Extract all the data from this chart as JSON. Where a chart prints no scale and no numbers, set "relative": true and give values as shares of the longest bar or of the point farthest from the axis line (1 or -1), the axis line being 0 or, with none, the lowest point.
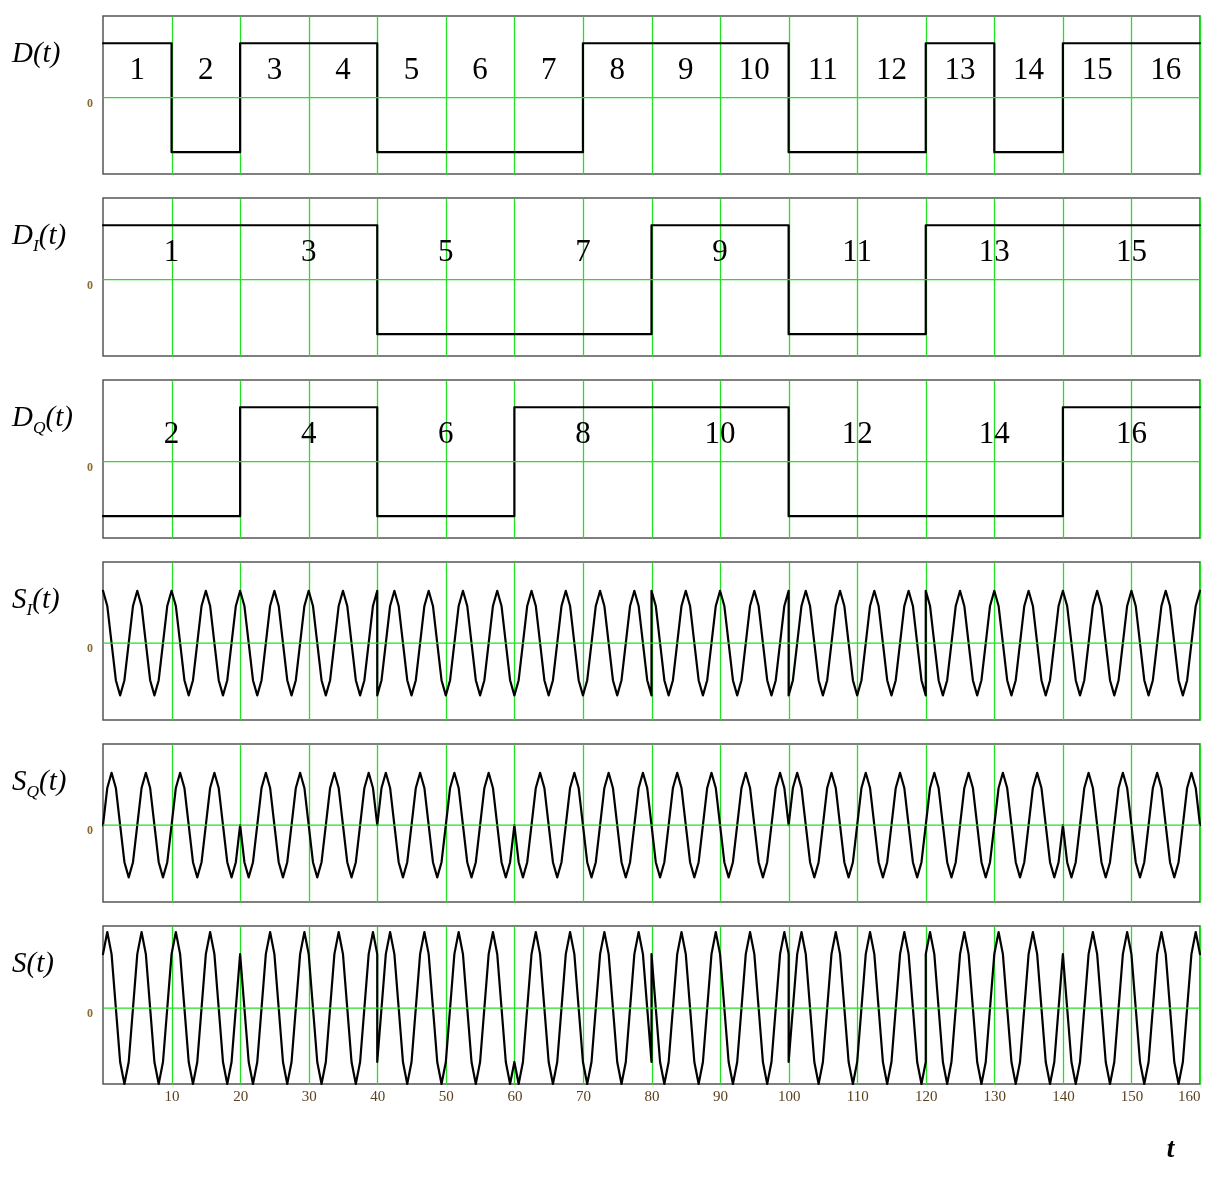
{
  "chart_data": [
    {
      "type": "step",
      "ylabel": "D(t)",
      "relative": true,
      "xlim": [
        0,
        160
      ],
      "xticks": [
        10,
        20,
        30,
        40,
        50,
        60,
        70,
        80,
        90,
        100,
        110,
        120,
        130,
        140,
        150,
        160
      ],
      "grid": "x",
      "tick_labels": "y",
      "x": [
        0,
        10,
        20,
        30,
        40,
        50,
        60,
        70,
        80,
        90,
        100,
        110,
        120,
        130,
        140,
        150,
        160
      ],
      "series": [
        {
          "color": "#000000",
          "values": [
            1,
            -1,
            1,
            1,
            -1,
            -1,
            -1,
            1,
            1,
            1,
            -1,
            -1,
            1,
            -1,
            1,
            1,
            1
          ]
        }
      ],
      "ref_lines": [
        {
          "axis": "y",
          "value": 0,
          "label": "0",
          "color": "#22e022"
        }
      ],
      "annotations": [
        "1",
        "2",
        "3",
        "4",
        "5",
        "6",
        "7",
        "8",
        "9",
        "10",
        "11",
        "12",
        "13",
        "14",
        "15",
        "16"
      ]
    },
    {
      "type": "step",
      "ylabel": "D$_{I}$(t)",
      "relative": true,
      "xlim": [
        0,
        160
      ],
      "xticks": [
        10,
        20,
        30,
        40,
        50,
        60,
        70,
        80,
        90,
        100,
        110,
        120,
        130,
        140,
        150,
        160
      ],
      "grid": "x",
      "tick_labels": "y",
      "x": [
        0,
        20,
        40,
        60,
        80,
        100,
        120,
        140,
        160
      ],
      "series": [
        {
          "color": "#000000",
          "values": [
            1,
            1,
            -1,
            -1,
            1,
            -1,
            1,
            1,
            1
          ]
        }
      ],
      "ref_lines": [
        {
          "axis": "y",
          "value": 0,
          "label": "0",
          "color": "#22e022"
        }
      ],
      "annotations": [
        "1",
        "3",
        "5",
        "7",
        "9",
        "11",
        "13",
        "15"
      ]
    },
    {
      "type": "step",
      "ylabel": "D$_{Q}$(t)",
      "relative": true,
      "xlim": [
        0,
        160
      ],
      "xticks": [
        10,
        20,
        30,
        40,
        50,
        60,
        70,
        80,
        90,
        100,
        110,
        120,
        130,
        140,
        150,
        160
      ],
      "grid": "x",
      "tick_labels": "y",
      "x": [
        0,
        20,
        40,
        60,
        80,
        100,
        120,
        140,
        160
      ],
      "series": [
        {
          "color": "#000000",
          "values": [
            -1,
            1,
            -1,
            1,
            1,
            -1,
            -1,
            1,
            1
          ]
        }
      ],
      "ref_lines": [
        {
          "axis": "y",
          "value": 0,
          "label": "0",
          "color": "#22e022"
        }
      ],
      "annotations": [
        "2",
        "4",
        "6",
        "8",
        "10",
        "12",
        "14",
        "16"
      ]
    },
    {
      "type": "line",
      "ylabel": "S$_{I}$(t)",
      "relative": true,
      "xlim": [
        0,
        160
      ],
      "xticks": [
        10,
        20,
        30,
        40,
        50,
        60,
        70,
        80,
        90,
        100,
        110,
        120,
        130,
        140,
        150,
        160
      ],
      "grid": "x",
      "tick_labels": "y",
      "x": [
        0,
        0.625,
        1.25,
        1.875,
        2.5,
        3.125,
        3.75,
        4.375,
        5,
        5.625,
        6.25,
        6.875,
        7.5,
        8.125,
        8.75,
        9.375,
        10,
        10.625,
        11.25,
        11.875,
        12.5,
        13.125,
        13.75,
        14.375,
        15,
        15.625,
        16.25,
        16.875,
        17.5,
        18.125,
        18.75,
        19.375,
        20,
        20.625,
        21.25,
        21.875,
        22.5,
        23.125,
        23.75,
        24.375,
        25,
        25.625,
        26.25,
        26.875,
        27.5,
        28.125,
        28.75,
        29.375,
        30,
        30.625,
        31.25,
        31.875,
        32.5,
        33.125,
        33.75,
        34.375,
        35,
        35.625,
        36.25,
        36.875,
        37.5,
        38.125,
        38.75,
        39.375,
        40,
        40,
        40.625,
        41.25,
        41.875,
        42.5,
        43.125,
        43.75,
        44.375,
        45,
        45.625,
        46.25,
        46.875,
        47.5,
        48.125,
        48.75,
        49.375,
        50,
        50.625,
        51.25,
        51.875,
        52.5,
        53.125,
        53.75,
        54.375,
        55,
        55.625,
        56.25,
        56.875,
        57.5,
        58.125,
        58.75,
        59.375,
        60,
        60.625,
        61.25,
        61.875,
        62.5,
        63.125,
        63.75,
        64.375,
        65,
        65.625,
        66.25,
        66.875,
        67.5,
        68.125,
        68.75,
        69.375,
        70,
        70.625,
        71.25,
        71.875,
        72.5,
        73.125,
        73.75,
        74.375,
        75,
        75.625,
        76.25,
        76.875,
        77.5,
        78.125,
        78.75,
        79.375,
        80,
        80,
        80.625,
        81.25,
        81.875,
        82.5,
        83.125,
        83.75,
        84.375,
        85,
        85.625,
        86.25,
        86.875,
        87.5,
        88.125,
        88.75,
        89.375,
        90,
        90.625,
        91.25,
        91.875,
        92.5,
        93.125,
        93.75,
        94.375,
        95,
        95.625,
        96.25,
        96.875,
        97.5,
        98.125,
        98.75,
        99.375,
        100,
        100,
        100.625,
        101.25,
        101.875,
        102.5,
        103.125,
        103.75,
        104.375,
        105,
        105.625,
        106.25,
        106.875,
        107.5,
        108.125,
        108.75,
        109.375,
        110,
        110.625,
        111.25,
        111.875,
        112.5,
        113.125,
        113.75,
        114.375,
        115,
        115.625,
        116.25,
        116.875,
        117.5,
        118.125,
        118.75,
        119.375,
        120,
        120,
        120.625,
        121.25,
        121.875,
        122.5,
        123.125,
        123.75,
        124.375,
        125,
        125.625,
        126.25,
        126.875,
        127.5,
        128.125,
        128.75,
        129.375,
        130,
        130.625,
        131.25,
        131.875,
        132.5,
        133.125,
        133.75,
        134.375,
        135,
        135.625,
        136.25,
        136.875,
        137.5,
        138.125,
        138.75,
        139.375,
        140,
        140.625,
        141.25,
        141.875,
        142.5,
        143.125,
        143.75,
        144.375,
        145,
        145.625,
        146.25,
        146.875,
        147.5,
        148.125,
        148.75,
        149.375,
        150,
        150.625,
        151.25,
        151.875,
        152.5,
        153.125,
        153.75,
        154.375,
        155,
        155.625,
        156.25,
        156.875,
        157.5,
        158.125,
        158.75,
        159.375,
        160
      ],
      "series": [
        {
          "color": "#000000",
          "values": [
            1,
            0.71,
            0,
            -0.71,
            -1,
            -0.71,
            0,
            0.71,
            1,
            0.71,
            0,
            -0.71,
            -1,
            -0.71,
            0,
            0.71,
            1,
            0.71,
            0,
            -0.71,
            -1,
            -0.71,
            0,
            0.71,
            1,
            0.71,
            0,
            -0.71,
            -1,
            -0.71,
            0,
            0.71,
            1,
            0.71,
            0,
            -0.71,
            -1,
            -0.71,
            0,
            0.71,
            1,
            0.71,
            0,
            -0.71,
            -1,
            -0.71,
            0,
            0.71,
            1,
            0.71,
            0,
            -0.71,
            -1,
            -0.71,
            0,
            0.71,
            1,
            0.71,
            0,
            -0.71,
            -1,
            -0.71,
            0,
            0.71,
            1,
            -1,
            -0.71,
            0,
            0.71,
            1,
            0.71,
            0,
            -0.71,
            -1,
            -0.71,
            0,
            0.71,
            1,
            0.71,
            0,
            -0.71,
            -1,
            -0.71,
            0,
            0.71,
            1,
            0.71,
            0,
            -0.71,
            -1,
            -0.71,
            0,
            0.71,
            1,
            0.71,
            0,
            -0.71,
            -1,
            -0.71,
            0,
            0.71,
            1,
            0.71,
            0,
            -0.71,
            -1,
            -0.71,
            0,
            0.71,
            1,
            0.71,
            0,
            -0.71,
            -1,
            -0.71,
            0,
            0.71,
            1,
            0.71,
            0,
            -0.71,
            -1,
            -0.71,
            0,
            0.71,
            1,
            0.71,
            0,
            -0.71,
            -1,
            1,
            0.71,
            0,
            -0.71,
            -1,
            -0.71,
            0,
            0.71,
            1,
            0.71,
            0,
            -0.71,
            -1,
            -0.71,
            0,
            0.71,
            1,
            0.71,
            0,
            -0.71,
            -1,
            -0.71,
            0,
            0.71,
            1,
            0.71,
            0,
            -0.71,
            -1,
            -0.71,
            0,
            0.71,
            1,
            -1,
            -0.71,
            0,
            0.71,
            1,
            0.71,
            0,
            -0.71,
            -1,
            -0.71,
            0,
            0.71,
            1,
            0.71,
            0,
            -0.71,
            -1,
            -0.71,
            0,
            0.71,
            1,
            0.71,
            0,
            -0.71,
            -1,
            -0.71,
            0,
            0.71,
            1,
            0.71,
            0,
            -0.71,
            -1,
            1,
            0.71,
            0,
            -0.71,
            -1,
            -0.71,
            0,
            0.71,
            1,
            0.71,
            0,
            -0.71,
            -1,
            -0.71,
            0,
            0.71,
            1,
            0.71,
            0,
            -0.71,
            -1,
            -0.71,
            0,
            0.71,
            1,
            0.71,
            0,
            -0.71,
            -1,
            -0.71,
            0,
            0.71,
            1,
            0.71,
            0,
            -0.71,
            -1,
            -0.71,
            0,
            0.71,
            1,
            0.71,
            0,
            -0.71,
            -1,
            -0.71,
            0,
            0.71,
            1,
            0.71,
            0,
            -0.71,
            -1,
            -0.71,
            0,
            0.71,
            1,
            0.71,
            0,
            -0.71,
            -1,
            -0.71,
            0,
            0.71,
            1
          ]
        }
      ],
      "ref_lines": [
        {
          "axis": "y",
          "value": 0,
          "label": "0",
          "color": "#22e022"
        }
      ]
    },
    {
      "type": "line",
      "ylabel": "S$_{Q}$(t)",
      "relative": true,
      "xlim": [
        0,
        160
      ],
      "xticks": [
        10,
        20,
        30,
        40,
        50,
        60,
        70,
        80,
        90,
        100,
        110,
        120,
        130,
        140,
        150,
        160
      ],
      "grid": "x",
      "tick_labels": "y",
      "x": [
        0,
        0.625,
        1.25,
        1.875,
        2.5,
        3.125,
        3.75,
        4.375,
        5,
        5.625,
        6.25,
        6.875,
        7.5,
        8.125,
        8.75,
        9.375,
        10,
        10.625,
        11.25,
        11.875,
        12.5,
        13.125,
        13.75,
        14.375,
        15,
        15.625,
        16.25,
        16.875,
        17.5,
        18.125,
        18.75,
        19.375,
        20,
        20.625,
        21.25,
        21.875,
        22.5,
        23.125,
        23.75,
        24.375,
        25,
        25.625,
        26.25,
        26.875,
        27.5,
        28.125,
        28.75,
        29.375,
        30,
        30.625,
        31.25,
        31.875,
        32.5,
        33.125,
        33.75,
        34.375,
        35,
        35.625,
        36.25,
        36.875,
        37.5,
        38.125,
        38.75,
        39.375,
        40,
        40.625,
        41.25,
        41.875,
        42.5,
        43.125,
        43.75,
        44.375,
        45,
        45.625,
        46.25,
        46.875,
        47.5,
        48.125,
        48.75,
        49.375,
        50,
        50.625,
        51.25,
        51.875,
        52.5,
        53.125,
        53.75,
        54.375,
        55,
        55.625,
        56.25,
        56.875,
        57.5,
        58.125,
        58.75,
        59.375,
        60,
        60.625,
        61.25,
        61.875,
        62.5,
        63.125,
        63.75,
        64.375,
        65,
        65.625,
        66.25,
        66.875,
        67.5,
        68.125,
        68.75,
        69.375,
        70,
        70.625,
        71.25,
        71.875,
        72.5,
        73.125,
        73.75,
        74.375,
        75,
        75.625,
        76.25,
        76.875,
        77.5,
        78.125,
        78.75,
        79.375,
        80,
        80.625,
        81.25,
        81.875,
        82.5,
        83.125,
        83.75,
        84.375,
        85,
        85.625,
        86.25,
        86.875,
        87.5,
        88.125,
        88.75,
        89.375,
        90,
        90.625,
        91.25,
        91.875,
        92.5,
        93.125,
        93.75,
        94.375,
        95,
        95.625,
        96.25,
        96.875,
        97.5,
        98.125,
        98.75,
        99.375,
        100,
        100.625,
        101.25,
        101.875,
        102.5,
        103.125,
        103.75,
        104.375,
        105,
        105.625,
        106.25,
        106.875,
        107.5,
        108.125,
        108.75,
        109.375,
        110,
        110.625,
        111.25,
        111.875,
        112.5,
        113.125,
        113.75,
        114.375,
        115,
        115.625,
        116.25,
        116.875,
        117.5,
        118.125,
        118.75,
        119.375,
        120,
        120.625,
        121.25,
        121.875,
        122.5,
        123.125,
        123.75,
        124.375,
        125,
        125.625,
        126.25,
        126.875,
        127.5,
        128.125,
        128.75,
        129.375,
        130,
        130.625,
        131.25,
        131.875,
        132.5,
        133.125,
        133.75,
        134.375,
        135,
        135.625,
        136.25,
        136.875,
        137.5,
        138.125,
        138.75,
        139.375,
        140,
        140.625,
        141.25,
        141.875,
        142.5,
        143.125,
        143.75,
        144.375,
        145,
        145.625,
        146.25,
        146.875,
        147.5,
        148.125,
        148.75,
        149.375,
        150,
        150.625,
        151.25,
        151.875,
        152.5,
        153.125,
        153.75,
        154.375,
        155,
        155.625,
        156.25,
        156.875,
        157.5,
        158.125,
        158.75,
        159.375,
        160
      ],
      "series": [
        {
          "color": "#000000",
          "values": [
            0,
            0.71,
            1,
            0.71,
            0,
            -0.71,
            -1,
            -0.71,
            0,
            0.71,
            1,
            0.71,
            0,
            -0.71,
            -1,
            -0.71,
            0,
            0.71,
            1,
            0.71,
            0,
            -0.71,
            -1,
            -0.71,
            0,
            0.71,
            1,
            0.71,
            0,
            -0.71,
            -1,
            -0.71,
            0,
            -0.71,
            -1,
            -0.71,
            0,
            0.71,
            1,
            0.71,
            0,
            -0.71,
            -1,
            -0.71,
            0,
            0.71,
            1,
            0.71,
            0,
            -0.71,
            -1,
            -0.71,
            0,
            0.71,
            1,
            0.71,
            0,
            -0.71,
            -1,
            -0.71,
            0,
            0.71,
            1,
            0.71,
            0,
            0.71,
            1,
            0.71,
            0,
            -0.71,
            -1,
            -0.71,
            0,
            0.71,
            1,
            0.71,
            0,
            -0.71,
            -1,
            -0.71,
            0,
            0.71,
            1,
            0.71,
            0,
            -0.71,
            -1,
            -0.71,
            0,
            0.71,
            1,
            0.71,
            0,
            -0.71,
            -1,
            -0.71,
            0,
            -0.71,
            -1,
            -0.71,
            0,
            0.71,
            1,
            0.71,
            0,
            -0.71,
            -1,
            -0.71,
            0,
            0.71,
            1,
            0.71,
            0,
            -0.71,
            -1,
            -0.71,
            0,
            0.71,
            1,
            0.71,
            0,
            -0.71,
            -1,
            -0.71,
            0,
            0.71,
            1,
            0.71,
            0,
            -0.71,
            -1,
            -0.71,
            0,
            0.71,
            1,
            0.71,
            0,
            -0.71,
            -1,
            -0.71,
            0,
            0.71,
            1,
            0.71,
            0,
            -0.71,
            -1,
            -0.71,
            0,
            0.71,
            1,
            0.71,
            0,
            -0.71,
            -1,
            -0.71,
            0,
            0.71,
            1,
            0.71,
            0,
            0.71,
            1,
            0.71,
            0,
            -0.71,
            -1,
            -0.71,
            0,
            0.71,
            1,
            0.71,
            0,
            -0.71,
            -1,
            -0.71,
            0,
            0.71,
            1,
            0.71,
            0,
            -0.71,
            -1,
            -0.71,
            0,
            0.71,
            1,
            0.71,
            0,
            -0.71,
            -1,
            -0.71,
            0,
            0.71,
            1,
            0.71,
            0,
            -0.71,
            -1,
            -0.71,
            0,
            0.71,
            1,
            0.71,
            0,
            -0.71,
            -1,
            -0.71,
            0,
            0.71,
            1,
            0.71,
            0,
            -0.71,
            -1,
            -0.71,
            0,
            0.71,
            1,
            0.71,
            0,
            -0.71,
            -1,
            -0.71,
            0,
            -0.71,
            -1,
            -0.71,
            0,
            0.71,
            1,
            0.71,
            0,
            -0.71,
            -1,
            -0.71,
            0,
            0.71,
            1,
            0.71,
            0,
            -0.71,
            -1,
            -0.71,
            0,
            0.71,
            1,
            0.71,
            0,
            -0.71,
            -1,
            -0.71,
            0,
            0.71,
            1,
            0.71,
            0
          ]
        }
      ],
      "ref_lines": [
        {
          "axis": "y",
          "value": 0,
          "label": "0",
          "color": "#22e022"
        }
      ]
    },
    {
      "type": "line",
      "ylabel": "S(t)",
      "xlabel": "t",
      "relative": true,
      "xlim": [
        0,
        160
      ],
      "xticks": [
        10,
        20,
        30,
        40,
        50,
        60,
        70,
        80,
        90,
        100,
        110,
        120,
        130,
        140,
        150,
        160
      ],
      "grid": "x",
      "x": [
        0,
        0.625,
        1.25,
        1.875,
        2.5,
        3.125,
        3.75,
        4.375,
        5,
        5.625,
        6.25,
        6.875,
        7.5,
        8.125,
        8.75,
        9.375,
        10,
        10.625,
        11.25,
        11.875,
        12.5,
        13.125,
        13.75,
        14.375,
        15,
        15.625,
        16.25,
        16.875,
        17.5,
        18.125,
        18.75,
        19.375,
        20,
        20.625,
        21.25,
        21.875,
        22.5,
        23.125,
        23.75,
        24.375,
        25,
        25.625,
        26.25,
        26.875,
        27.5,
        28.125,
        28.75,
        29.375,
        30,
        30.625,
        31.25,
        31.875,
        32.5,
        33.125,
        33.75,
        34.375,
        35,
        35.625,
        36.25,
        36.875,
        37.5,
        38.125,
        38.75,
        39.375,
        40,
        40,
        40.625,
        41.25,
        41.875,
        42.5,
        43.125,
        43.75,
        44.375,
        45,
        45.625,
        46.25,
        46.875,
        47.5,
        48.125,
        48.75,
        49.375,
        50,
        50.625,
        51.25,
        51.875,
        52.5,
        53.125,
        53.75,
        54.375,
        55,
        55.625,
        56.25,
        56.875,
        57.5,
        58.125,
        58.75,
        59.375,
        60,
        60.625,
        61.25,
        61.875,
        62.5,
        63.125,
        63.75,
        64.375,
        65,
        65.625,
        66.25,
        66.875,
        67.5,
        68.125,
        68.75,
        69.375,
        70,
        70.625,
        71.25,
        71.875,
        72.5,
        73.125,
        73.75,
        74.375,
        75,
        75.625,
        76.25,
        76.875,
        77.5,
        78.125,
        78.75,
        79.375,
        80,
        80,
        80.625,
        81.25,
        81.875,
        82.5,
        83.125,
        83.75,
        84.375,
        85,
        85.625,
        86.25,
        86.875,
        87.5,
        88.125,
        88.75,
        89.375,
        90,
        90.625,
        91.25,
        91.875,
        92.5,
        93.125,
        93.75,
        94.375,
        95,
        95.625,
        96.25,
        96.875,
        97.5,
        98.125,
        98.75,
        99.375,
        100,
        100,
        100.625,
        101.25,
        101.875,
        102.5,
        103.125,
        103.75,
        104.375,
        105,
        105.625,
        106.25,
        106.875,
        107.5,
        108.125,
        108.75,
        109.375,
        110,
        110.625,
        111.25,
        111.875,
        112.5,
        113.125,
        113.75,
        114.375,
        115,
        115.625,
        116.25,
        116.875,
        117.5,
        118.125,
        118.75,
        119.375,
        120,
        120,
        120.625,
        121.25,
        121.875,
        122.5,
        123.125,
        123.75,
        124.375,
        125,
        125.625,
        126.25,
        126.875,
        127.5,
        128.125,
        128.75,
        129.375,
        130,
        130.625,
        131.25,
        131.875,
        132.5,
        133.125,
        133.75,
        134.375,
        135,
        135.625,
        136.25,
        136.875,
        137.5,
        138.125,
        138.75,
        139.375,
        140,
        140.625,
        141.25,
        141.875,
        142.5,
        143.125,
        143.75,
        144.375,
        145,
        145.625,
        146.25,
        146.875,
        147.5,
        148.125,
        148.75,
        149.375,
        150,
        150.625,
        151.25,
        151.875,
        152.5,
        153.125,
        153.75,
        154.375,
        155,
        155.625,
        156.25,
        156.875,
        157.5,
        158.125,
        158.75,
        159.375,
        160
      ],
      "series": [
        {
          "color": "#000000",
          "values": [
            0.71,
            1,
            0.71,
            0,
            -0.71,
            -1,
            -0.71,
            0,
            0.71,
            1,
            0.71,
            0,
            -0.71,
            -1,
            -0.71,
            0,
            0.71,
            1,
            0.71,
            0,
            -0.71,
            -1,
            -0.71,
            0,
            0.71,
            1,
            0.71,
            0,
            -0.71,
            -1,
            -0.71,
            0,
            0.71,
            0,
            -0.71,
            -1,
            -0.71,
            0,
            0.71,
            1,
            0.71,
            0,
            -0.71,
            -1,
            -0.71,
            0,
            0.71,
            1,
            0.71,
            0,
            -0.71,
            -1,
            -0.71,
            0,
            0.71,
            1,
            0.71,
            0,
            -0.71,
            -1,
            -0.71,
            0,
            0.71,
            1,
            0.71,
            -0.71,
            0,
            0.71,
            1,
            0.71,
            0,
            -0.71,
            -1,
            -0.71,
            0,
            0.71,
            1,
            0.71,
            0,
            -0.71,
            -1,
            -0.71,
            0,
            0.71,
            1,
            0.71,
            0,
            -0.71,
            -1,
            -0.71,
            0,
            0.71,
            1,
            0.71,
            0,
            -0.71,
            -1,
            -0.71,
            -1,
            -0.71,
            0,
            0.71,
            1,
            0.71,
            0,
            -0.71,
            -1,
            -0.71,
            0,
            0.71,
            1,
            0.71,
            0,
            -0.71,
            -1,
            -0.71,
            0,
            0.71,
            1,
            0.71,
            0,
            -0.71,
            -1,
            -0.71,
            0,
            0.71,
            1,
            0.71,
            0,
            -0.71,
            0.71,
            0,
            -0.71,
            -1,
            -0.71,
            0,
            0.71,
            1,
            0.71,
            0,
            -0.71,
            -1,
            -0.71,
            0,
            0.71,
            1,
            0.71,
            0,
            -0.71,
            -1,
            -0.71,
            0,
            0.71,
            1,
            0.71,
            0,
            -0.71,
            -1,
            -0.71,
            0,
            0.71,
            1,
            0.71,
            -0.71,
            0,
            0.71,
            1,
            0.71,
            0,
            -0.71,
            -1,
            -0.71,
            0,
            0.71,
            1,
            0.71,
            0,
            -0.71,
            -1,
            -0.71,
            0,
            0.71,
            1,
            0.71,
            0,
            -0.71,
            -1,
            -0.71,
            0,
            0.71,
            1,
            0.71,
            0,
            -0.71,
            -1,
            -0.71,
            0.71,
            1,
            0.71,
            0,
            -0.71,
            -1,
            -0.71,
            0,
            0.71,
            1,
            0.71,
            0,
            -0.71,
            -1,
            -0.71,
            0,
            0.71,
            1,
            0.71,
            0,
            -0.71,
            -1,
            -0.71,
            0,
            0.71,
            1,
            0.71,
            0,
            -0.71,
            -1,
            -0.71,
            0,
            0.71,
            0,
            -0.71,
            -1,
            -0.71,
            0,
            0.71,
            1,
            0.71,
            0,
            -0.71,
            -1,
            -0.71,
            0,
            0.71,
            1,
            0.71,
            0,
            -0.71,
            -1,
            -0.71,
            0,
            0.71,
            1,
            0.71,
            0,
            -0.71,
            -1,
            -0.71,
            0,
            0.71,
            1,
            0.71
          ]
        }
      ],
      "ref_lines": [
        {
          "axis": "y",
          "value": 0,
          "label": "0",
          "color": "#22e022"
        }
      ]
    }
  ]
}
